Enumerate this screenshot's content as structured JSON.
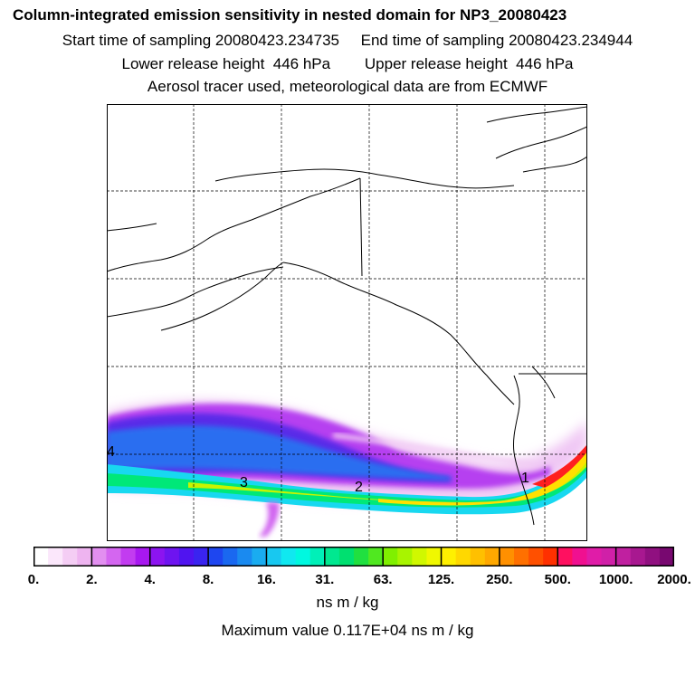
{
  "header": {
    "title": "Column-integrated emission sensitivity in nested domain for NP3_20080423",
    "sampling_line": "Start time of sampling 20080423.234735     End time of sampling 20080423.234944",
    "release_line": "Lower release height  446 hPa        Upper release height  446 hPa",
    "model_line": "Aerosol tracer used, meteorological data are from ECMWF"
  },
  "map": {
    "day_labels": [
      "1",
      "2",
      "3",
      "4"
    ],
    "colors": {
      "outline": "#000000",
      "grid": "#000000"
    }
  },
  "colorbar": {
    "ticks": [
      "0.",
      "2.",
      "4.",
      "8.",
      "16.",
      "31.",
      "63.",
      "125.",
      "250.",
      "500.",
      "1000.",
      "2000."
    ],
    "units": "ns m / kg",
    "max_value": "Maximum value  0.117E+04 ns m / kg",
    "colors": [
      "#ffffff",
      "#fbe7fb",
      "#f4cdf4",
      "#eeb4f0",
      "#e28ff0",
      "#d466f0",
      "#c23cf0",
      "#a818f0",
      "#8c14f0",
      "#6e14f0",
      "#5014f0",
      "#3a24f0",
      "#1e46f0",
      "#1a68f0",
      "#1a8af0",
      "#1aacf0",
      "#18c8f0",
      "#10e8f0",
      "#00f8e0",
      "#00f0b8",
      "#00e890",
      "#00e070",
      "#20e040",
      "#50e820",
      "#80f000",
      "#a8f400",
      "#d0f800",
      "#f0f800",
      "#fff000",
      "#ffd800",
      "#ffc000",
      "#ffa800",
      "#ff9000",
      "#ff7000",
      "#ff5000",
      "#ff3000",
      "#ff1060",
      "#f01090",
      "#e01ca8",
      "#d020a8",
      "#c020a0",
      "#a81890",
      "#901080",
      "#780870"
    ]
  }
}
